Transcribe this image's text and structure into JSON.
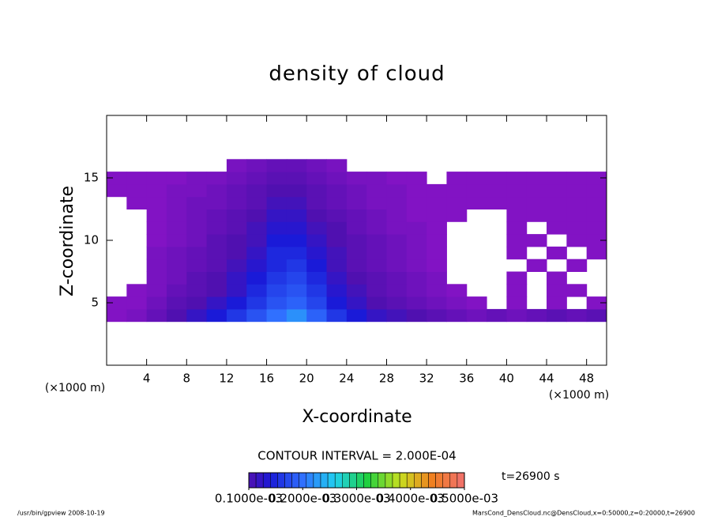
{
  "chart_data": {
    "type": "heatmap",
    "title": "density of cloud",
    "x_label": "X-coordinate",
    "y_label": "Z-coordinate",
    "x_unit": "(×1000 m)",
    "y_unit": "(×1000 m)",
    "contour_note": "CONTOUR INTERVAL = 2.000E-04",
    "time_label": "t=26900 s",
    "footer_left": "/usr/bin/gpview  2008-10-19",
    "footer_right": "MarsCond_DensCloud.nc@DensCloud,x=0:50000,z=0:20000,t=26900",
    "xlim": [
      0,
      50
    ],
    "ylim": [
      0,
      20
    ],
    "xticks": [
      4,
      8,
      12,
      16,
      20,
      24,
      28,
      32,
      36,
      40,
      44,
      48
    ],
    "yticks": [
      5,
      10,
      15
    ],
    "clim": [
      0.0001,
      0.0005
    ],
    "cticks": [
      {
        "value": 0.0001,
        "label": "0.1000e-03"
      },
      {
        "value": 0.0002,
        "label": "0.2000e-03"
      },
      {
        "value": 0.0003,
        "label": "0.3000e-03"
      },
      {
        "value": 0.0004,
        "label": "0.4000e-03"
      },
      {
        "value": 0.0005,
        "label": "0.5000e-03"
      }
    ],
    "x": [
      1,
      3,
      5,
      7,
      9,
      11,
      13,
      15,
      17,
      19,
      21,
      23,
      25,
      27,
      29,
      31,
      33,
      35,
      37,
      39,
      41,
      43,
      45,
      47,
      49
    ],
    "y": [
      4,
      5,
      6,
      7,
      8,
      9,
      10,
      11,
      12,
      13,
      14,
      15,
      16
    ],
    "values": [
      [
        5e-05,
        6e-05,
        8e-05,
        0.0001,
        0.00012,
        0.00014,
        0.00016,
        0.00018,
        0.0002,
        0.00022,
        0.00019,
        0.00016,
        0.00014,
        0.00012,
        0.00011,
        0.0001,
        9e-05,
        8e-05,
        7e-05,
        8e-05,
        7e-05,
        8e-05,
        9e-05,
        8e-05,
        9e-05
      ],
      [
        5e-05,
        5e-05,
        7e-05,
        9e-05,
        0.0001,
        0.00012,
        0.00014,
        0.00016,
        0.00018,
        0.00019,
        0.00017,
        0.00014,
        0.00012,
        0.0001,
        9e-05,
        8e-05,
        7e-05,
        6e-05,
        5e-05,
        null,
        5e-05,
        null,
        5e-05,
        null,
        5e-05
      ],
      [
        null,
        5e-05,
        6e-05,
        8e-05,
        9e-05,
        0.0001,
        0.00012,
        0.00015,
        0.00017,
        0.00018,
        0.00016,
        0.00013,
        0.00011,
        9e-05,
        8e-05,
        7e-05,
        6e-05,
        5e-05,
        null,
        null,
        5e-05,
        null,
        5e-05,
        5e-05,
        null
      ],
      [
        null,
        null,
        6e-05,
        7e-05,
        9e-05,
        0.0001,
        0.00012,
        0.00014,
        0.00016,
        0.00017,
        0.00015,
        0.00012,
        0.0001,
        9e-05,
        8e-05,
        7e-05,
        6e-05,
        null,
        null,
        null,
        5e-05,
        null,
        5e-05,
        null,
        null
      ],
      [
        null,
        null,
        6e-05,
        7e-05,
        8e-05,
        9e-05,
        0.00011,
        0.00013,
        0.00015,
        0.00016,
        0.00014,
        0.00011,
        9e-05,
        8e-05,
        7e-05,
        6e-05,
        5e-05,
        null,
        null,
        null,
        null,
        5e-05,
        null,
        5e-05,
        null
      ],
      [
        null,
        null,
        6e-05,
        7e-05,
        8e-05,
        9e-05,
        0.0001,
        0.00012,
        0.00015,
        0.00015,
        0.00013,
        0.00011,
        9e-05,
        8e-05,
        7e-05,
        6e-05,
        5e-05,
        null,
        null,
        null,
        5e-05,
        null,
        5e-05,
        null,
        5e-05
      ],
      [
        null,
        null,
        5e-05,
        6e-05,
        7e-05,
        9e-05,
        0.0001,
        0.00011,
        0.00014,
        0.00014,
        0.00012,
        0.0001,
        9e-05,
        8e-05,
        7e-05,
        6e-05,
        5e-05,
        null,
        null,
        null,
        5e-05,
        5e-05,
        null,
        5e-05,
        5e-05
      ],
      [
        null,
        null,
        5e-05,
        6e-05,
        7e-05,
        8e-05,
        9e-05,
        0.00011,
        0.00013,
        0.00013,
        0.00011,
        0.0001,
        8e-05,
        7e-05,
        6e-05,
        6e-05,
        5e-05,
        null,
        null,
        null,
        5e-05,
        null,
        5e-05,
        5e-05,
        5e-05
      ],
      [
        null,
        null,
        5e-05,
        6e-05,
        7e-05,
        8e-05,
        9e-05,
        0.0001,
        0.00012,
        0.00012,
        0.0001,
        9e-05,
        8e-05,
        7e-05,
        6e-05,
        5e-05,
        5e-05,
        5e-05,
        null,
        null,
        5e-05,
        5e-05,
        5e-05,
        5e-05,
        5e-05
      ],
      [
        null,
        5e-05,
        5e-05,
        6e-05,
        7e-05,
        7e-05,
        8e-05,
        9e-05,
        0.00011,
        0.00011,
        9e-05,
        8e-05,
        7e-05,
        6e-05,
        6e-05,
        5e-05,
        5e-05,
        5e-05,
        5e-05,
        5e-05,
        5e-05,
        5e-05,
        5e-05,
        5e-05,
        5e-05
      ],
      [
        5e-05,
        5e-05,
        5e-05,
        6e-05,
        6e-05,
        7e-05,
        8e-05,
        9e-05,
        0.0001,
        0.0001,
        9e-05,
        8e-05,
        7e-05,
        6e-05,
        6e-05,
        5e-05,
        5e-05,
        5e-05,
        5e-05,
        5e-05,
        5e-05,
        5e-05,
        5e-05,
        5e-05,
        5e-05
      ],
      [
        5e-05,
        5e-05,
        5e-05,
        5e-05,
        6e-05,
        6e-05,
        7e-05,
        8e-05,
        9e-05,
        9e-05,
        8e-05,
        7e-05,
        6e-05,
        6e-05,
        5e-05,
        5e-05,
        null,
        5e-05,
        5e-05,
        5e-05,
        5e-05,
        5e-05,
        5e-05,
        5e-05,
        5e-05
      ],
      [
        null,
        null,
        null,
        null,
        null,
        null,
        6e-05,
        7e-05,
        8e-05,
        8e-05,
        7e-05,
        6e-05,
        null,
        null,
        null,
        null,
        null,
        null,
        null,
        null,
        null,
        null,
        null,
        null,
        null
      ]
    ]
  }
}
